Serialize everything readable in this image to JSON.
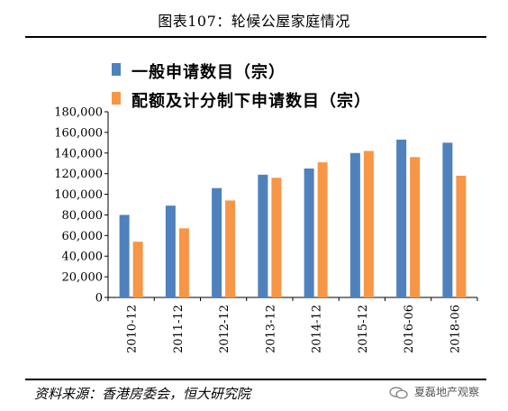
{
  "header": {
    "title": "图表107：轮候公屋家庭情况"
  },
  "footer": {
    "source": "资料来源：香港房委会，恒大研究院",
    "watermark": "夏磊地产观察"
  },
  "colors": {
    "series1": "#4f81bd",
    "series2": "#f79646",
    "axis": "#000000"
  },
  "chart_data": {
    "type": "bar",
    "categories": [
      "2010-12",
      "2011-12",
      "2012-12",
      "2013-12",
      "2014-12",
      "2015-12",
      "2016-06",
      "2018-06"
    ],
    "series": [
      {
        "name": "一般申请数目（宗）",
        "values": [
          80000,
          89000,
          106000,
          119000,
          125000,
          140000,
          153000,
          150000
        ]
      },
      {
        "name": "配额及计分制下申请数目（宗）",
        "values": [
          54000,
          67000,
          94000,
          116000,
          131000,
          142000,
          136000,
          118000
        ]
      }
    ],
    "yticks": [
      "0",
      "20,000",
      "40,000",
      "60,000",
      "80,000",
      "100,000",
      "120,000",
      "140,000",
      "160,000",
      "180,000"
    ],
    "ylim": [
      0,
      180000
    ],
    "grid": false,
    "legend_position": "top-left"
  }
}
